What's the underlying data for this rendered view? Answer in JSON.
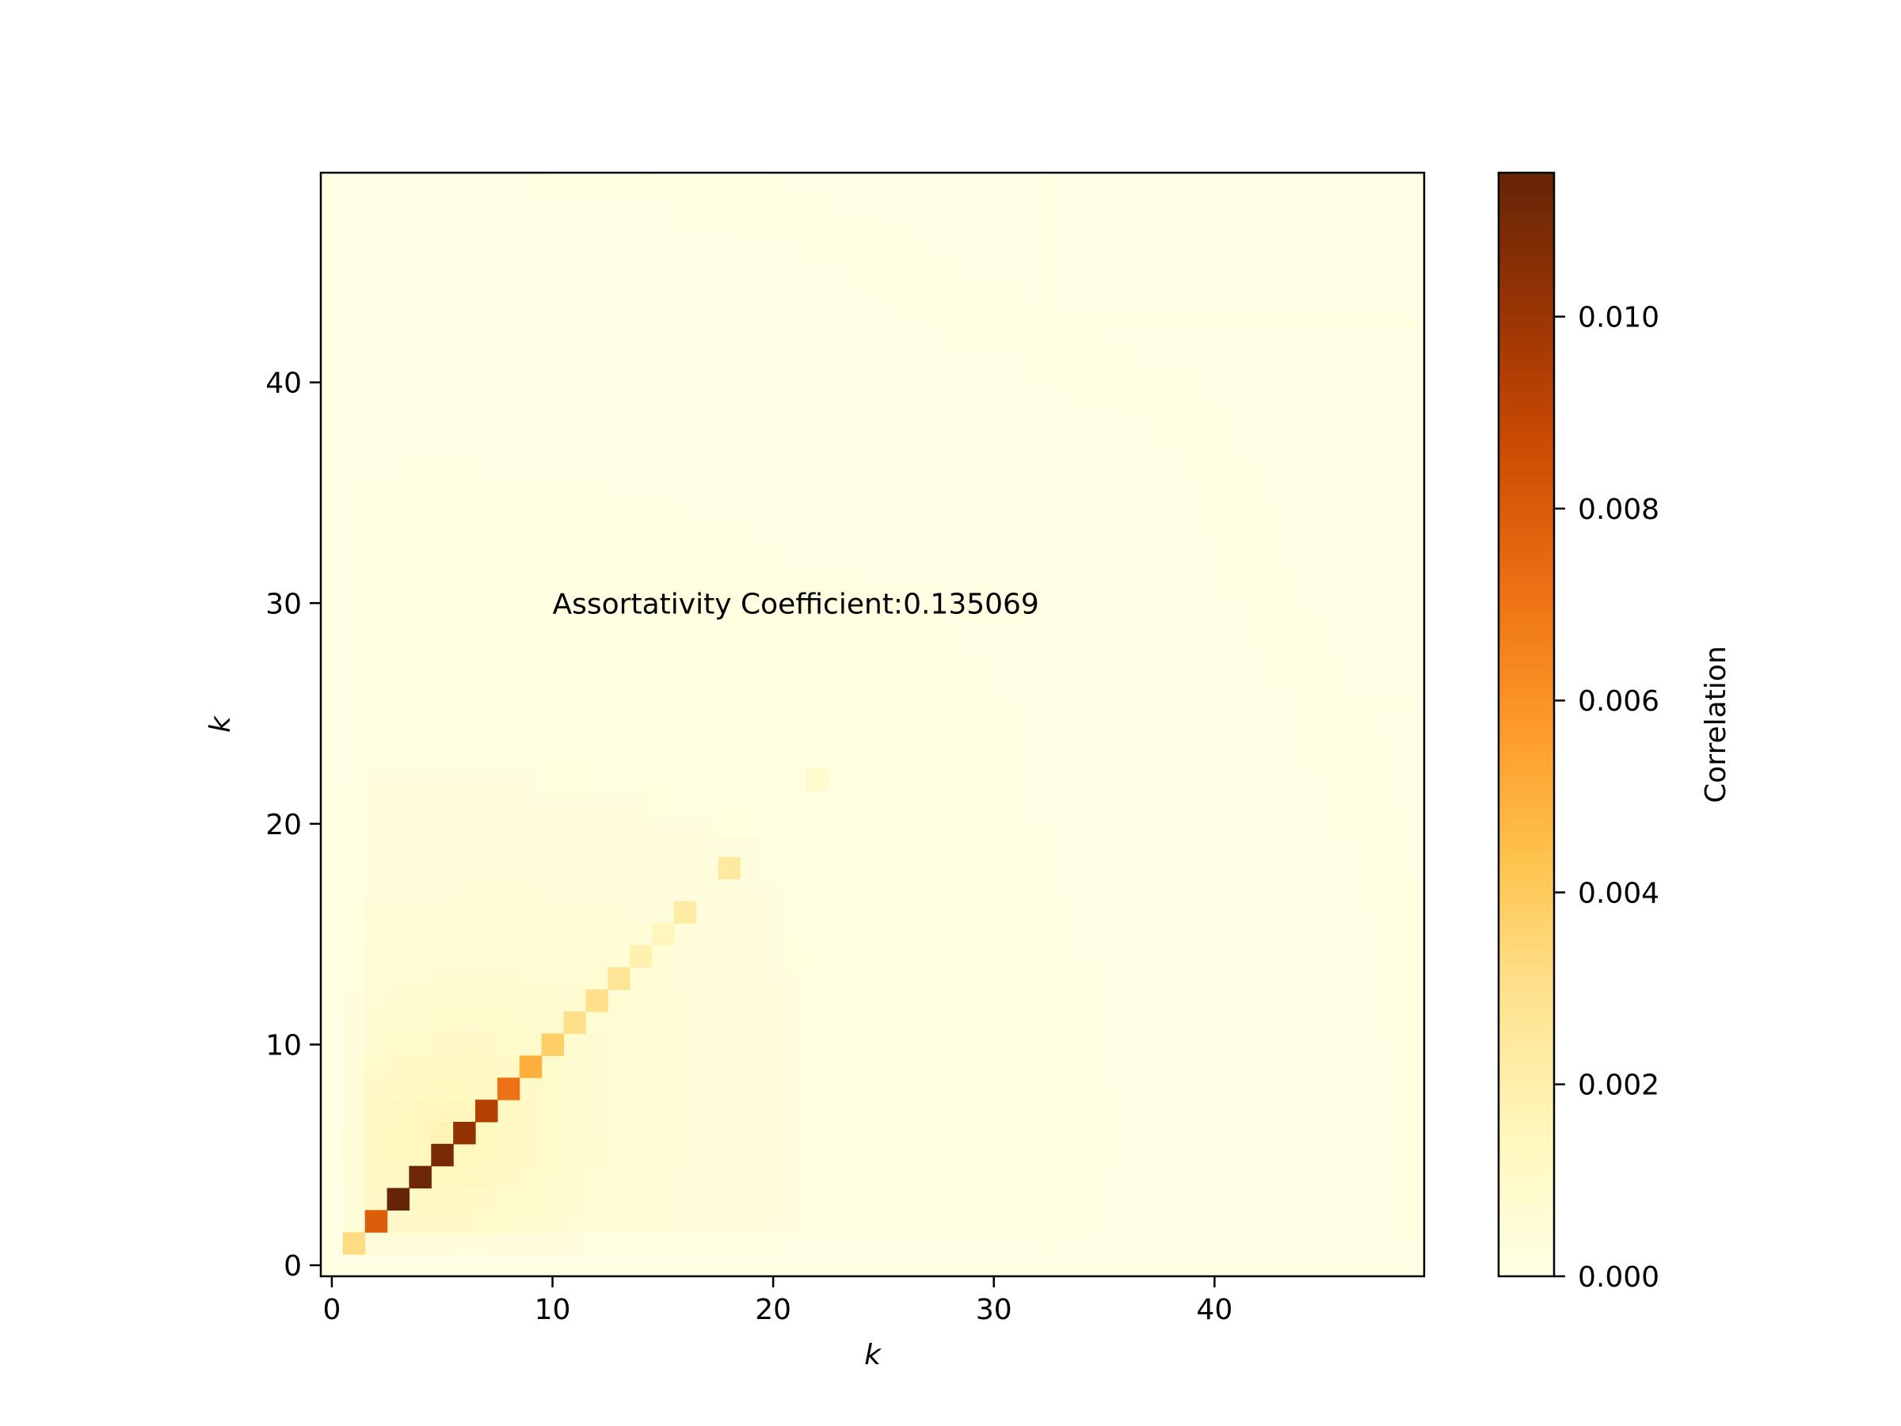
{
  "chart_data": {
    "type": "heatmap",
    "title": "",
    "xlabel": "k",
    "ylabel": "k",
    "xlim": [
      -0.5,
      49.5
    ],
    "ylim": [
      -0.5,
      49.5
    ],
    "x_ticks": [
      0,
      10,
      20,
      30,
      40
    ],
    "y_ticks": [
      0,
      10,
      20,
      30,
      40
    ],
    "annotation": {
      "text": "Assortativity Coefficient:0.135069",
      "x": 10,
      "y": 30
    },
    "colorbar": {
      "label": "Correlation",
      "range": [
        0,
        0.0115
      ],
      "ticks": [
        0.0,
        0.002,
        0.004,
        0.006,
        0.008,
        0.01
      ],
      "tick_labels": [
        "0.000",
        "0.002",
        "0.004",
        "0.006",
        "0.008",
        "0.010"
      ],
      "colormap": "YlOrBr",
      "colors": [
        "#ffffe5",
        "#fff7bc",
        "#fee391",
        "#fec44f",
        "#fe9929",
        "#ec7014",
        "#cc4c02",
        "#993404",
        "#662506"
      ]
    },
    "diagonal_cells": [
      {
        "k": 1,
        "value": 0.0032
      },
      {
        "k": 2,
        "value": 0.0079
      },
      {
        "k": 3,
        "value": 0.0115
      },
      {
        "k": 4,
        "value": 0.0113
      },
      {
        "k": 5,
        "value": 0.011
      },
      {
        "k": 6,
        "value": 0.0103
      },
      {
        "k": 7,
        "value": 0.0093
      },
      {
        "k": 8,
        "value": 0.0071
      },
      {
        "k": 9,
        "value": 0.005
      },
      {
        "k": 10,
        "value": 0.0038
      },
      {
        "k": 11,
        "value": 0.003
      },
      {
        "k": 12,
        "value": 0.003
      },
      {
        "k": 13,
        "value": 0.0027
      },
      {
        "k": 14,
        "value": 0.0018
      },
      {
        "k": 15,
        "value": 0.0014
      },
      {
        "k": 16,
        "value": 0.0022
      },
      {
        "k": 18,
        "value": 0.0024
      },
      {
        "k": 22,
        "value": 0.0009
      }
    ],
    "background": {
      "description": "off-diagonal correlation decays with distance from origin",
      "peak_value": 0.0016,
      "decay_k": 9,
      "outer_value": 8e-05
    }
  }
}
